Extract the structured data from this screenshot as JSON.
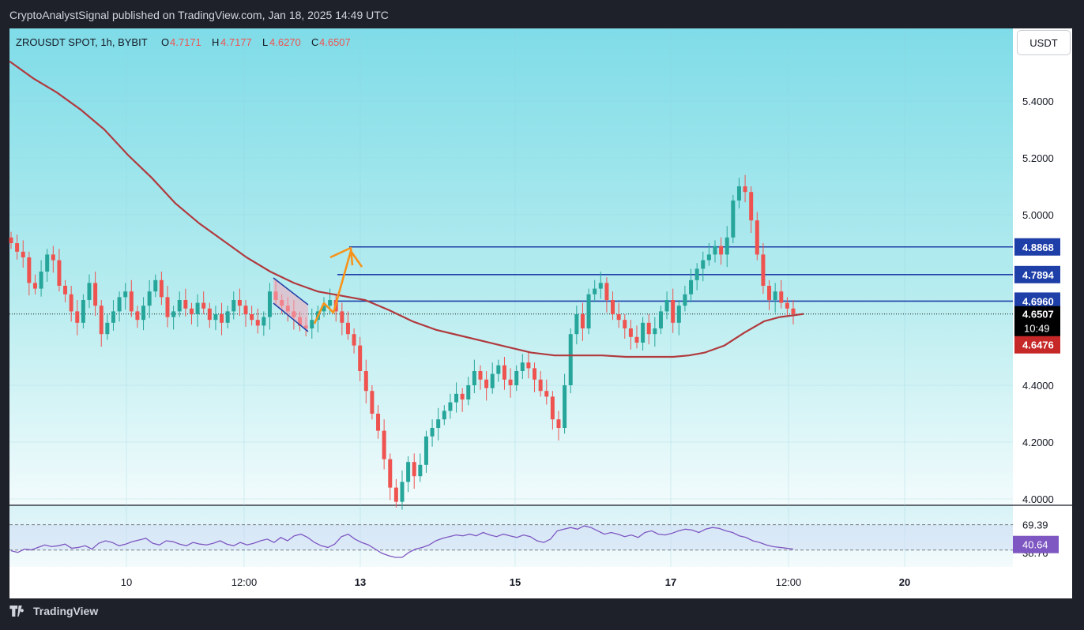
{
  "header": {
    "published": "CryptoAnalystSignal published on TradingView.com, Jan 18, 2025 14:49 UTC"
  },
  "legend": {
    "symbol": "ZROUSDT SPOT, 1h, BYBIT",
    "o_label": "O",
    "o_value": "4.7171",
    "h_label": "H",
    "h_value": "4.7177",
    "l_label": "L",
    "l_value": "4.6270",
    "c_label": "C",
    "c_value": "4.6507"
  },
  "currency_button": "USDT",
  "footer": {
    "brand": "TradingView"
  },
  "colors": {
    "up": "#26a69a",
    "down": "#ef5350",
    "ma": "#b03a3e",
    "level": "#1e3fa8",
    "arrow": "#f7931a",
    "rsi": "#7e57c2",
    "label_blue": "#1e3fa8",
    "label_red": "#c62828"
  },
  "chart_data": {
    "type": "candlestick",
    "price_axis": {
      "ticks": [
        "5.4000",
        "5.2000",
        "5.0000",
        "4.4000",
        "4.2000",
        "4.0000"
      ],
      "ylim": [
        4.0,
        5.55
      ]
    },
    "time_axis": {
      "ticks": [
        "10",
        "12:00",
        "13",
        "15",
        "17",
        "12:00",
        "20"
      ]
    },
    "levels": [
      {
        "price": 4.8868,
        "label": "4.8868"
      },
      {
        "price": 4.7894,
        "label": "4.7894"
      },
      {
        "price": 4.696,
        "label": "4.6960"
      }
    ],
    "current": {
      "price": 4.6507,
      "label": "4.6507",
      "countdown": "10:49"
    },
    "ma_value": {
      "price": 4.6476,
      "label": "4.6476"
    },
    "candle_closes": [
      4.9,
      4.87,
      4.85,
      4.76,
      4.74,
      4.8,
      4.86,
      4.84,
      4.75,
      4.72,
      4.66,
      4.62,
      4.7,
      4.76,
      4.68,
      4.58,
      4.62,
      4.66,
      4.71,
      4.73,
      4.66,
      4.63,
      4.68,
      4.73,
      4.77,
      4.71,
      4.64,
      4.66,
      4.7,
      4.67,
      4.65,
      4.69,
      4.67,
      4.63,
      4.65,
      4.62,
      4.66,
      4.7,
      4.68,
      4.65,
      4.63,
      4.61,
      4.64,
      4.73,
      4.7,
      4.68,
      4.66,
      4.64,
      4.61,
      4.6,
      4.63,
      4.66,
      4.68,
      4.7,
      4.66,
      4.62,
      4.58,
      4.54,
      4.45,
      4.38,
      4.3,
      4.24,
      4.14,
      4.04,
      3.99,
      4.06,
      4.13,
      4.08,
      4.12,
      4.22,
      4.25,
      4.28,
      4.31,
      4.34,
      4.37,
      4.35,
      4.4,
      4.45,
      4.42,
      4.39,
      4.44,
      4.47,
      4.42,
      4.4,
      4.45,
      4.48,
      4.46,
      4.42,
      4.38,
      4.36,
      4.28,
      4.25,
      4.4,
      4.58,
      4.65,
      4.6,
      4.72,
      4.74,
      4.76,
      4.7,
      4.65,
      4.63,
      4.6,
      4.57,
      4.55,
      4.62,
      4.58,
      4.6,
      4.66,
      4.7,
      4.62,
      4.68,
      4.72,
      4.77,
      4.81,
      4.84,
      4.86,
      4.89,
      4.86,
      4.92,
      5.05,
      5.1,
      5.08,
      4.98,
      4.86,
      4.75,
      4.7,
      4.73,
      4.69,
      4.67,
      4.65
    ],
    "ma_points": [
      [
        0,
        5.54
      ],
      [
        30,
        5.48
      ],
      [
        60,
        5.43
      ],
      [
        90,
        5.37
      ],
      [
        120,
        5.3
      ],
      [
        150,
        5.21
      ],
      [
        180,
        5.13
      ],
      [
        210,
        5.04
      ],
      [
        240,
        4.97
      ],
      [
        270,
        4.91
      ],
      [
        300,
        4.85
      ],
      [
        330,
        4.8
      ],
      [
        360,
        4.76
      ],
      [
        390,
        4.73
      ],
      [
        420,
        4.715
      ],
      [
        450,
        4.7
      ],
      [
        480,
        4.665
      ],
      [
        510,
        4.625
      ],
      [
        540,
        4.595
      ],
      [
        570,
        4.575
      ],
      [
        600,
        4.555
      ],
      [
        630,
        4.535
      ],
      [
        660,
        4.515
      ],
      [
        690,
        4.505
      ],
      [
        720,
        4.505
      ],
      [
        750,
        4.505
      ],
      [
        780,
        4.5
      ],
      [
        810,
        4.5
      ],
      [
        840,
        4.5
      ],
      [
        860,
        4.505
      ],
      [
        880,
        4.515
      ],
      [
        905,
        4.54
      ],
      [
        930,
        4.585
      ],
      [
        955,
        4.625
      ],
      [
        975,
        4.64
      ],
      [
        995,
        4.647
      ],
      [
        1005,
        4.651
      ]
    ],
    "rsi": {
      "ticks": [
        "69.39",
        "38.76"
      ],
      "current": "40.64",
      "values": [
        38,
        36,
        40,
        39,
        42,
        45,
        43,
        44,
        46,
        41,
        42,
        44,
        40,
        47,
        50,
        48,
        44,
        46,
        49,
        51,
        53,
        47,
        45,
        50,
        49,
        46,
        44,
        48,
        46,
        45,
        47,
        50,
        46,
        44,
        48,
        45,
        47,
        50,
        52,
        48,
        54,
        50,
        56,
        58,
        54,
        48,
        44,
        42,
        46,
        55,
        58,
        52,
        48,
        45,
        40,
        35,
        32,
        30,
        30,
        36,
        40,
        42,
        45,
        50,
        53,
        55,
        57,
        56,
        58,
        56,
        60,
        57,
        55,
        58,
        56,
        54,
        57,
        55,
        50,
        48,
        52,
        62,
        64,
        66,
        64,
        68,
        66,
        62,
        58,
        60,
        58,
        55,
        57,
        54,
        60,
        62,
        58,
        57,
        59,
        62,
        64,
        63,
        60,
        64,
        66,
        65,
        62,
        60,
        56,
        54,
        50,
        48,
        45,
        43,
        42,
        41,
        40
      ]
    }
  }
}
